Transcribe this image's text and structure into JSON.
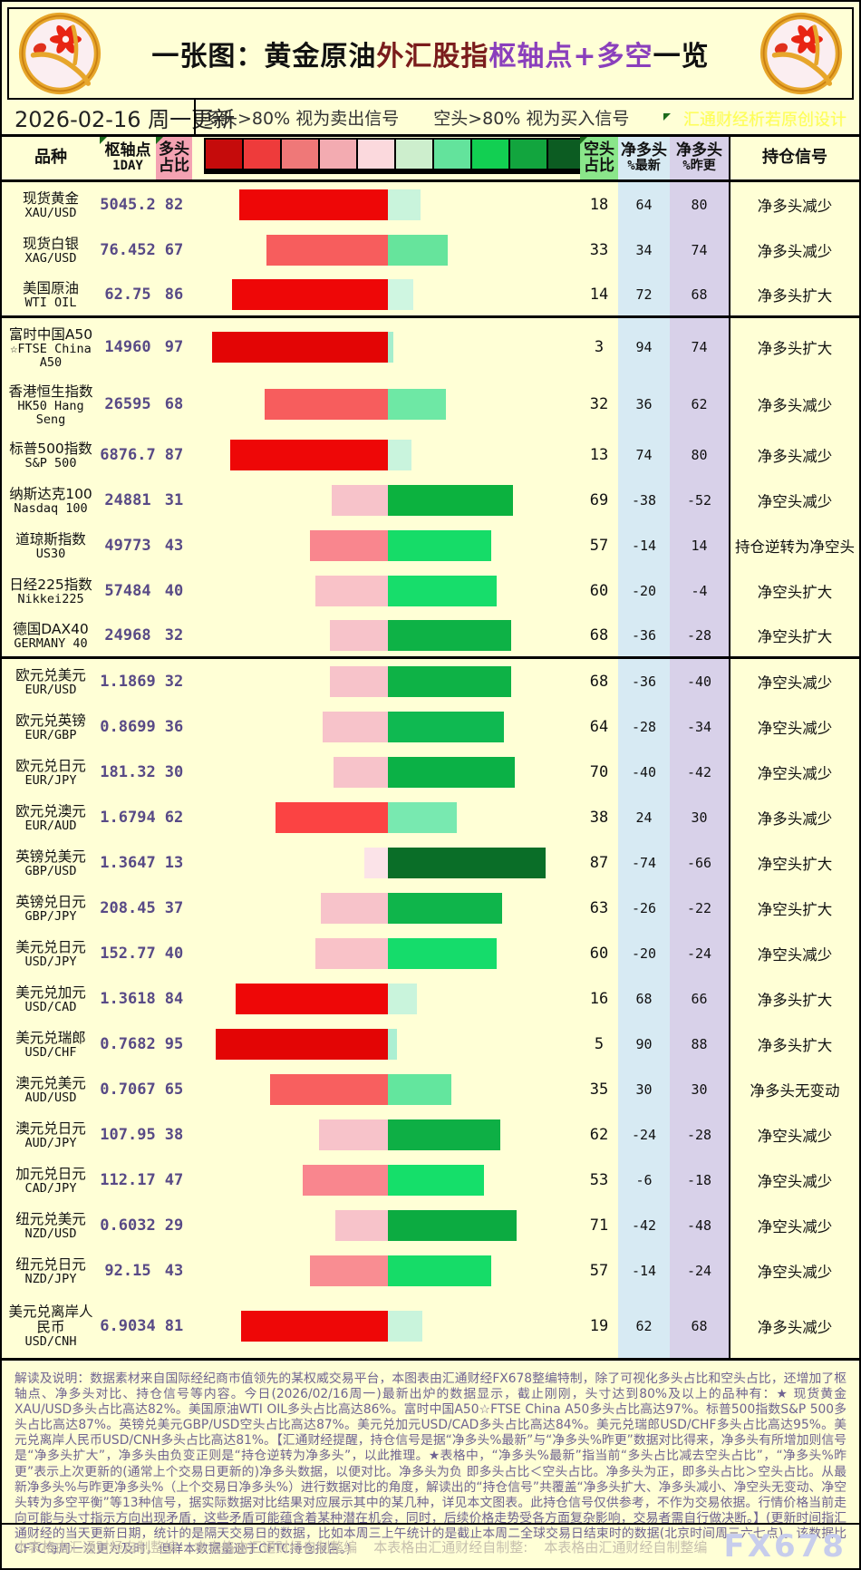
{
  "header": {
    "title_parts": [
      "一张图：黄金原油",
      "外汇股指",
      "枢轴点+多空",
      "一览"
    ],
    "date_text": "2026-02-16 周一更新",
    "legend_long": "多头>80% 视为卖出信号",
    "legend_short": "空头>80% 视为买入信号",
    "watermark": "汇通财经析若原创设计",
    "scale_colors": [
      "#c50b0b",
      "#ee3b3b",
      "#ef7878",
      "#f3abb1",
      "#fbd9dd",
      "#cdeecd",
      "#63e39c",
      "#12cf52",
      "#12a53e",
      "#0c5c22"
    ],
    "logo_name": "fx678-flower-medallion"
  },
  "columns": {
    "name": "品种",
    "pivot_l1": "枢轴点",
    "pivot_l2": "1DAY",
    "long_l1": "多头",
    "long_l2": "占比",
    "short_l1": "空头",
    "short_l2": "占比",
    "netnew_l1": "净多头",
    "netnew_l2": "%最新",
    "netprev_l1": "净多头",
    "netprev_l2": "%昨更",
    "signal": "持仓信号"
  },
  "table": {
    "rows": [
      {
        "cn": "现货黄金",
        "en": "XAU/USD",
        "pivot": "5045.2",
        "long": 82,
        "short": 18,
        "net_new": 64,
        "net_prev": 80,
        "signal": "净多头减少",
        "lc": "#ee0707",
        "sc": "#c9f4dc"
      },
      {
        "cn": "现货白银",
        "en": "XAG/USD",
        "pivot": "76.452",
        "long": 67,
        "short": 33,
        "net_new": 34,
        "net_prev": 74,
        "signal": "净多头减少",
        "lc": "#f75d5d",
        "sc": "#66e49c"
      },
      {
        "cn": "美国原油",
        "en": "WTI OIL",
        "pivot": "62.75",
        "long": 86,
        "short": 14,
        "net_new": 72,
        "net_prev": 68,
        "signal": "净多头扩大",
        "lc": "#ee0707",
        "sc": "#cff6e1",
        "section_end": true
      },
      {
        "cn": "富时中国A50",
        "en": "☆FTSE China A50",
        "pivot": "14960",
        "long": 97,
        "short": 3,
        "net_new": 94,
        "net_prev": 74,
        "signal": "净多头扩大",
        "lc": "#e30505",
        "sc": "#a5eecd",
        "h": "h64"
      },
      {
        "cn": "香港恒生指数",
        "en": "HK50 Hang Seng",
        "pivot": "26595",
        "long": 68,
        "short": 32,
        "net_new": 36,
        "net_prev": 62,
        "signal": "净多头减少",
        "lc": "#f75d5d",
        "sc": "#6ee8a5",
        "h": "h62"
      },
      {
        "cn": "标普500指数",
        "en": "S&P 500",
        "pivot": "6876.7",
        "long": 87,
        "short": 13,
        "net_new": 74,
        "net_prev": 80,
        "signal": "净多头减少",
        "lc": "#ee0707",
        "sc": "#c9f4dd"
      },
      {
        "cn": "纳斯达克100",
        "en": "Nasdaq 100",
        "pivot": "24881",
        "long": 31,
        "short": 69,
        "net_new": -38,
        "net_prev": -52,
        "signal": "净空头减少",
        "lc": "#f7c3ca",
        "sc": "#0cb23f"
      },
      {
        "cn": "道琼斯指数",
        "en": "US30",
        "pivot": "49773",
        "long": 43,
        "short": 57,
        "net_new": -14,
        "net_prev": 14,
        "signal": "持仓逆转为净空头",
        "lc": "#f9868e",
        "sc": "#16dc68"
      },
      {
        "cn": "日经225指数",
        "en": "Nikkei225",
        "pivot": "57484",
        "long": 40,
        "short": 60,
        "net_new": -20,
        "net_prev": -4,
        "signal": "净空头扩大",
        "lc": "#f9c2c8",
        "sc": "#17dd6b"
      },
      {
        "cn": "德国DAX40",
        "en": "GERMANY 40",
        "pivot": "24968",
        "long": 32,
        "short": 68,
        "net_new": -36,
        "net_prev": -28,
        "signal": "净空头扩大",
        "lc": "#f7c3ca",
        "sc": "#0eb246",
        "section_end": true
      },
      {
        "cn": "欧元兑美元",
        "en": "EUR/USD",
        "pivot": "1.1869",
        "long": 32,
        "short": 68,
        "net_new": -36,
        "net_prev": -40,
        "signal": "净空头减少",
        "lc": "#f7c3ca",
        "sc": "#0eb246"
      },
      {
        "cn": "欧元兑英镑",
        "en": "EUR/GBP",
        "pivot": "0.8699",
        "long": 36,
        "short": 64,
        "net_new": -28,
        "net_prev": -34,
        "signal": "净空头减少",
        "lc": "#f7c3ca",
        "sc": "#0fb951"
      },
      {
        "cn": "欧元兑日元",
        "en": "EUR/JPY",
        "pivot": "181.32",
        "long": 30,
        "short": 70,
        "net_new": -40,
        "net_prev": -42,
        "signal": "净空头减少",
        "lc": "#f7c3ca",
        "sc": "#0bb146"
      },
      {
        "cn": "欧元兑澳元",
        "en": "EUR/AUD",
        "pivot": "1.6794",
        "long": 62,
        "short": 38,
        "net_new": 24,
        "net_prev": 30,
        "signal": "净多头减少",
        "lc": "#fb4343",
        "sc": "#78e9b0"
      },
      {
        "cn": "英镑兑美元",
        "en": "GBP/USD",
        "pivot": "1.3647",
        "long": 13,
        "short": 87,
        "net_new": -74,
        "net_prev": -66,
        "signal": "净空头扩大",
        "lc": "#fbe3e8",
        "sc": "#0a6e28"
      },
      {
        "cn": "英镑兑日元",
        "en": "GBP/JPY",
        "pivot": "208.45",
        "long": 37,
        "short": 63,
        "net_new": -26,
        "net_prev": -22,
        "signal": "净空头扩大",
        "lc": "#f7c3ca",
        "sc": "#0fb54b"
      },
      {
        "cn": "美元兑日元",
        "en": "USD/JPY",
        "pivot": "152.77",
        "long": 40,
        "short": 60,
        "net_new": -20,
        "net_prev": -24,
        "signal": "净空头减少",
        "lc": "#f9c2c8",
        "sc": "#15dc6b"
      },
      {
        "cn": "美元兑加元",
        "en": "USD/CAD",
        "pivot": "1.3618",
        "long": 84,
        "short": 16,
        "net_new": 68,
        "net_prev": 66,
        "signal": "净多头扩大",
        "lc": "#ee0707",
        "sc": "#c9f4dc"
      },
      {
        "cn": "美元兑瑞郎",
        "en": "USD/CHF",
        "pivot": "0.7682",
        "long": 95,
        "short": 5,
        "net_new": 90,
        "net_prev": 88,
        "signal": "净多头扩大",
        "lc": "#e30505",
        "sc": "#abefd2"
      },
      {
        "cn": "澳元兑美元",
        "en": "AUD/USD",
        "pivot": "0.7067",
        "long": 65,
        "short": 35,
        "net_new": 30,
        "net_prev": 30,
        "signal": "净多头无变动",
        "lc": "#f85f5f",
        "sc": "#63e69e"
      },
      {
        "cn": "澳元兑日元",
        "en": "AUD/JPY",
        "pivot": "107.95",
        "long": 38,
        "short": 62,
        "net_new": -24,
        "net_prev": -28,
        "signal": "净空头减少",
        "lc": "#f7c3ca",
        "sc": "#0eaf45"
      },
      {
        "cn": "加元兑日元",
        "en": "CAD/JPY",
        "pivot": "112.17",
        "long": 47,
        "short": 53,
        "net_new": -6,
        "net_prev": -18,
        "signal": "净空头减少",
        "lc": "#f9868e",
        "sc": "#15df6a"
      },
      {
        "cn": "纽元兑美元",
        "en": "NZD/USD",
        "pivot": "0.6032",
        "long": 29,
        "short": 71,
        "net_new": -42,
        "net_prev": -48,
        "signal": "净空头减少",
        "lc": "#f7c3ca",
        "sc": "#0cab41"
      },
      {
        "cn": "纽元兑日元",
        "en": "NZD/JPY",
        "pivot": "92.15",
        "long": 43,
        "short": 57,
        "net_new": -14,
        "net_prev": -24,
        "signal": "净空头减少",
        "lc": "#f98d92",
        "sc": "#16dc68"
      },
      {
        "cn": "美元兑离岸人民币",
        "en": "USD/CNH",
        "pivot": "6.9034",
        "long": 81,
        "short": 19,
        "net_new": 62,
        "net_prev": 68,
        "signal": "净多头减少",
        "lc": "#ee0707",
        "sc": "#c9f4dc",
        "section_end": true,
        "h": "h74"
      }
    ]
  },
  "chart_data": {
    "type": "bar",
    "subtype": "diverging-stacked-table",
    "title": "一张图：黄金原油外汇股指枢轴点+多空一览",
    "update": "2026-02-16 周一更新",
    "legend": [
      "多头>80% 视为卖出信号",
      "空头>80% 视为买入信号"
    ],
    "categories": [
      "XAU/USD",
      "XAG/USD",
      "WTI OIL",
      "FTSE China A50",
      "HK50 Hang Seng",
      "S&P 500",
      "Nasdaq 100",
      "US30",
      "Nikkei225",
      "GERMANY 40",
      "EUR/USD",
      "EUR/GBP",
      "EUR/JPY",
      "EUR/AUD",
      "GBP/USD",
      "GBP/JPY",
      "USD/JPY",
      "USD/CAD",
      "USD/CHF",
      "AUD/USD",
      "AUD/JPY",
      "CAD/JPY",
      "NZD/USD",
      "NZD/JPY",
      "USD/CNH"
    ],
    "series": [
      {
        "name": "枢轴点1DAY",
        "values": [
          5045.2,
          76.452,
          62.75,
          14960,
          26595,
          6876.7,
          24881,
          49773,
          57484,
          24968,
          1.1869,
          0.8699,
          181.32,
          1.6794,
          1.3647,
          208.45,
          152.77,
          1.3618,
          0.7682,
          0.7067,
          107.95,
          112.17,
          0.6032,
          92.15,
          6.9034
        ]
      },
      {
        "name": "多头占比",
        "values": [
          82,
          67,
          86,
          97,
          68,
          87,
          31,
          43,
          40,
          32,
          32,
          36,
          30,
          62,
          13,
          37,
          40,
          84,
          95,
          65,
          38,
          47,
          29,
          43,
          81
        ]
      },
      {
        "name": "空头占比",
        "values": [
          18,
          33,
          14,
          3,
          32,
          13,
          69,
          57,
          60,
          68,
          68,
          64,
          70,
          38,
          87,
          63,
          60,
          16,
          5,
          35,
          62,
          53,
          71,
          57,
          19
        ]
      },
      {
        "name": "净多头%最新",
        "values": [
          64,
          34,
          72,
          94,
          36,
          74,
          -38,
          -14,
          -20,
          -36,
          -36,
          -28,
          -40,
          24,
          -74,
          -26,
          -20,
          68,
          90,
          30,
          -24,
          -6,
          -42,
          -14,
          62
        ]
      },
      {
        "name": "净多头%昨更",
        "values": [
          80,
          74,
          68,
          74,
          62,
          80,
          -52,
          14,
          -4,
          -28,
          -40,
          -34,
          -42,
          30,
          -66,
          -22,
          -24,
          66,
          88,
          30,
          -28,
          -18,
          -48,
          -24,
          68
        ]
      }
    ],
    "signals": [
      "净多头减少",
      "净多头减少",
      "净多头扩大",
      "净多头扩大",
      "净多头减少",
      "净多头减少",
      "净空头减少",
      "持仓逆转为净空头",
      "净空头扩大",
      "净空头扩大",
      "净空头减少",
      "净空头减少",
      "净空头减少",
      "净多头减少",
      "净空头扩大",
      "净空头扩大",
      "净空头减少",
      "净多头扩大",
      "净多头扩大",
      "净多头无变动",
      "净空头减少",
      "净空头减少",
      "净空头减少",
      "净空头减少",
      "净多头减少"
    ],
    "xlim": [
      100,
      100
    ],
    "layout": "red bar = long% extends left of anchor, green bar = short% extends right of anchor"
  },
  "footer": {
    "note": "解读及说明：数据素材来自国际经纪商市值领先的某权威交易平台，本图表由汇通财经FX678整编特制，除了可视化多头占比和空头占比，还增加了枢轴点、净多头对比、持仓信号等内容。今日(2026/02/16周一)最新出炉的数据显示，截止刚刚，头寸达到80%及以上的品种有：★ 现货黄金XAU/USD多头占比高达82%。美国原油WTI OIL多头占比高达86%。富时中国A50☆FTSE China A50多头占比高达97%。标普500指数S&P 500多头占比高达87%。英镑兑美元GBP/USD空头占比高达87%。美元兑加元USD/CAD多头占比高达84%。美元兑瑞郎USD/CHF多头占比高达95%。美元兑离岸人民币USD/CNH多头占比高达81%。【汇通财经提醒，持仓信号是据“净多头%最新”与“净多头%昨更”数据对比得来，净多头有所增加则信号是“净多头扩大”，净多头由负变正则是“持仓逆转为净多头”，以此推理。★表格中，“净多头%最新”指当前“多头占比减去空头占比”，“净多头%昨更”表示上次更新的(通常上个交易日更新的)净多头数据，以便对比。净多头为负 即多头占比＜空头占比。净多头为正，即多头占比＞空头占比。从最新净多头%与昨更净多头%（上个交易日净多头%）进行数据对比的角度，解读出的“持仓信号”共覆盖“净多头扩大、净多头减小、净空头无变动、净空头转为多空平衡”等13种信号，据实际数据对比结果对应展示其中的某几种，详见本文图表。此持仓信号仅供参考，不作为交易依据。行情价格当前走向可能与头寸指示方向出现矛盾，这些矛盾可能蕴含着某种潜在机会，同时，后续价格走势受各方面复杂影响，交易者需自行做决断。】(更新时间指汇通财经的当天更新日期，统计的是隔天交易日的数据，比如本周三上午统计的是截止本周二全球交易日结束时的数据(北京时间周三六七点)。该数据比CFTC每周一次更为及时，但样本数据量逊于CFTC持仓报告。)",
    "credits": [
      "本表格由汇通财经自制整编",
      "本表格由汇通财经自制整编",
      "本表格由汇通财经自制整:",
      "本表格由汇通财经自制整编"
    ],
    "brand": "FX678"
  }
}
